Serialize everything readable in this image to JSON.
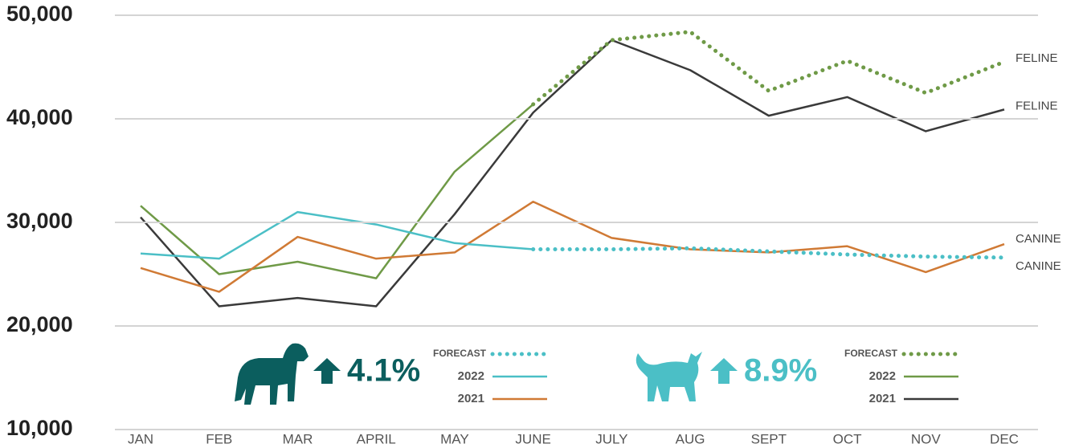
{
  "chart_data": {
    "type": "line",
    "categories": [
      "JAN",
      "FEB",
      "MAR",
      "APRIL",
      "MAY",
      "JUNE",
      "JULY",
      "AUG",
      "SEPT",
      "OCT",
      "NOV",
      "DEC"
    ],
    "ylim": [
      10000,
      50000
    ],
    "yticks": [
      {
        "value": 10000,
        "label": "10,000"
      },
      {
        "value": 20000,
        "label": "20,000"
      },
      {
        "value": 30000,
        "label": "30,000"
      },
      {
        "value": 40000,
        "label": "40,000"
      },
      {
        "value": 50000,
        "label": "50,000"
      }
    ],
    "grid": true,
    "series": [
      {
        "name": "FORECAST",
        "end_label": "CANINE",
        "color": "#4bbfc6",
        "style": "dotted",
        "values": [
          null,
          null,
          null,
          null,
          null,
          27400,
          27400,
          27500,
          27200,
          26900,
          26700,
          26600
        ]
      },
      {
        "name": "2022",
        "color": "#4bbfc6",
        "style": "solid",
        "values": [
          27000,
          26500,
          31000,
          29800,
          28000,
          27400,
          null,
          null,
          null,
          null,
          null,
          null
        ]
      },
      {
        "name": "2021",
        "end_label": "CANINE",
        "color": "#d07a35",
        "style": "solid",
        "values": [
          25600,
          23300,
          28600,
          26500,
          27100,
          32000,
          28500,
          27400,
          27100,
          27700,
          25200,
          27900
        ]
      },
      {
        "name": "FORECAST",
        "end_label": "FELINE",
        "color": "#6f9a47",
        "style": "dotted",
        "values": [
          null,
          null,
          null,
          null,
          null,
          41400,
          47600,
          48400,
          42700,
          45600,
          42500,
          45500
        ]
      },
      {
        "name": "2022",
        "color": "#6f9a47",
        "style": "solid",
        "values": [
          31600,
          25000,
          26200,
          24600,
          34900,
          41400,
          null,
          null,
          null,
          null,
          null,
          null
        ]
      },
      {
        "name": "2021",
        "end_label": "FELINE",
        "color": "#3a3a3a",
        "style": "solid",
        "values": [
          30500,
          21900,
          22700,
          21900,
          30800,
          40600,
          47600,
          44700,
          40300,
          42100,
          38800,
          40900
        ]
      }
    ],
    "annotations": [
      "4.1%",
      "8.9%"
    ]
  }
}
